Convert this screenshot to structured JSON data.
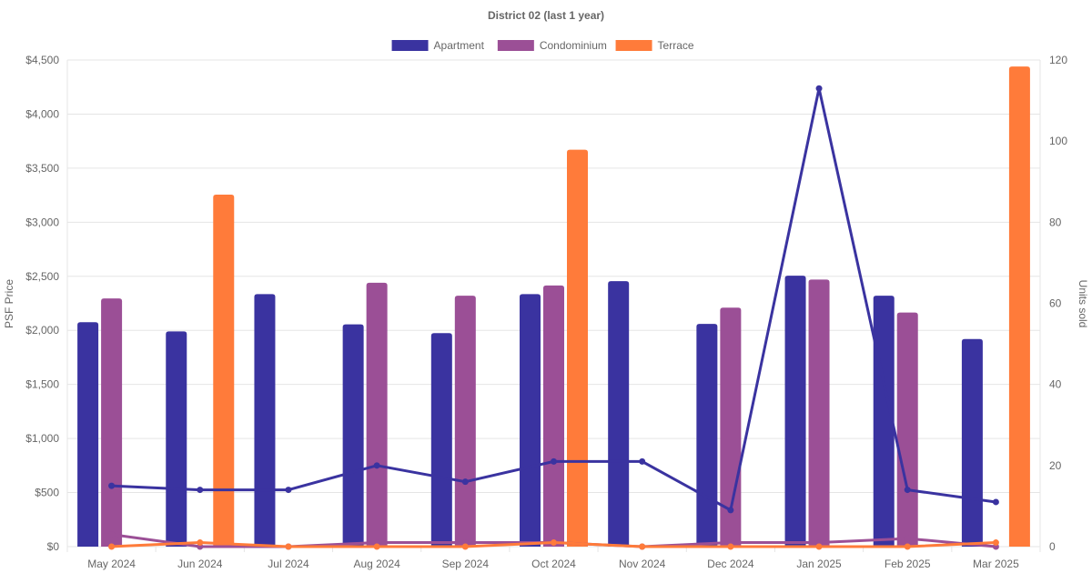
{
  "chart_data": {
    "type": "bar",
    "title": "District 02 (last 1 year)",
    "categories": [
      "May 2024",
      "Jun 2024",
      "Jul 2024",
      "Aug 2024",
      "Sep 2024",
      "Oct 2024",
      "Nov 2024",
      "Dec 2024",
      "Jan 2025",
      "Feb 2025",
      "Mar 2025"
    ],
    "ylabel_left": "PSF Price",
    "ylabel_right": "Units sold",
    "ylim_left": [
      0,
      4500
    ],
    "ylim_right": [
      0,
      120
    ],
    "yticks_left": [
      0,
      500,
      1000,
      1500,
      2000,
      2500,
      3000,
      3500,
      4000,
      4500
    ],
    "yticks_left_labels": [
      "$0",
      "$500",
      "$1,000",
      "$1,500",
      "$2,000",
      "$2,500",
      "$3,000",
      "$3,500",
      "$4,000",
      "$4,500"
    ],
    "yticks_right": [
      0,
      20,
      40,
      60,
      80,
      100,
      120
    ],
    "yticks_right_labels": [
      "0",
      "20",
      "40",
      "60",
      "80",
      "100",
      "120"
    ],
    "grid": true,
    "legend_position": "top-center",
    "bar_series": [
      {
        "name": "Apartment",
        "color": "#3a33a0",
        "values": [
          2075,
          1990,
          2335,
          2055,
          1975,
          2335,
          2455,
          2060,
          2505,
          2320,
          1920
        ]
      },
      {
        "name": "Condominium",
        "color": "#9b4f96",
        "values": [
          2295,
          null,
          null,
          2440,
          2320,
          2415,
          null,
          2210,
          2470,
          2165,
          null
        ]
      },
      {
        "name": "Terrace",
        "color": "#ff7b3a",
        "values": [
          null,
          3255,
          null,
          null,
          null,
          3670,
          null,
          null,
          null,
          null,
          4440
        ]
      }
    ],
    "line_series": [
      {
        "name": "Apartment units sold",
        "color": "#3a33a0",
        "values": [
          15,
          14,
          14,
          20,
          16,
          21,
          21,
          9,
          113,
          14,
          11
        ]
      },
      {
        "name": "Condominium units sold",
        "color": "#9b4f96",
        "values": [
          3,
          0,
          0,
          1,
          1,
          1,
          0,
          1,
          1,
          2,
          0
        ]
      },
      {
        "name": "Terrace units sold",
        "color": "#ff7b3a",
        "values": [
          0,
          1,
          0,
          0,
          0,
          1,
          0,
          0,
          0,
          0,
          1
        ]
      }
    ]
  }
}
